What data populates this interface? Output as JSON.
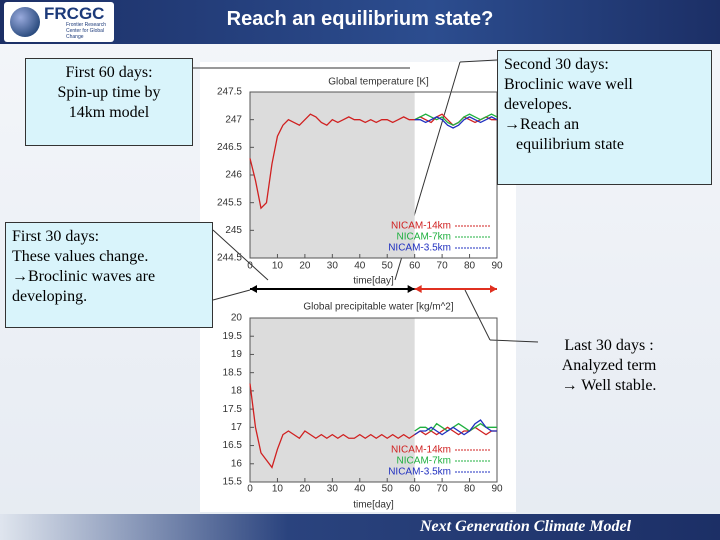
{
  "header": {
    "title": "Reach an equilibrium state?",
    "logo": "FRCGC",
    "logo_subtitle": "Frontier Research Center for Global Change"
  },
  "footer": "Next Generation Climate Model",
  "callouts": [
    {
      "lines": [
        "First 60 days:",
        "Spin-up time by",
        "14km model"
      ]
    },
    {
      "lines": [
        "First 30 days:",
        "These values change.",
        "→Broclinic waves are",
        "developing."
      ]
    },
    {
      "lines": [
        "Second 30 days:",
        "Broclinic wave well",
        "developes.",
        "→Reach an",
        "   equilibrium state"
      ]
    },
    {
      "lines": [
        "Last 30 days :",
        "Analyzed term",
        "→ Well stable."
      ]
    }
  ],
  "arrows": [
    {
      "from": 0,
      "to": 60,
      "color": "#000000"
    },
    {
      "from": 60,
      "to": 90,
      "color": "#e03020"
    }
  ],
  "chart_data": [
    {
      "type": "line",
      "title": "Global temperature [K]",
      "x_label": "time[day]",
      "x": [
        0,
        2,
        4,
        6,
        8,
        10,
        12,
        14,
        16,
        18,
        20,
        22,
        24,
        26,
        28,
        30,
        32,
        34,
        36,
        38,
        40,
        42,
        44,
        46,
        48,
        50,
        52,
        54,
        56,
        58,
        60,
        62,
        64,
        66,
        68,
        70,
        72,
        74,
        76,
        78,
        80,
        82,
        84,
        86,
        88,
        90
      ],
      "xlim": [
        0,
        90
      ],
      "xticks": [
        0,
        10,
        20,
        30,
        40,
        50,
        60,
        70,
        80,
        90
      ],
      "ylim": [
        244.5,
        247.5
      ],
      "yticks": [
        244.5,
        245,
        245.5,
        246,
        246.5,
        247,
        247.5
      ],
      "grid": false,
      "legend": "lower right",
      "spans": [
        {
          "from": 0,
          "to": 60,
          "color": "#dcdcdc"
        }
      ],
      "series": [
        {
          "name": "NICAM-14km",
          "color": "#d02020",
          "values": [
            246.3,
            245.9,
            245.4,
            245.5,
            246.2,
            246.7,
            246.9,
            247.0,
            246.95,
            246.9,
            247.0,
            247.1,
            247.05,
            246.95,
            246.9,
            247.0,
            246.95,
            247.0,
            247.05,
            247.0,
            247.0,
            246.95,
            247.0,
            246.95,
            247.0,
            247.0,
            246.95,
            247.0,
            247.05,
            247.0,
            247.0,
            247.05,
            247.0,
            246.95,
            247.05,
            247.1,
            247.0,
            246.9,
            246.95,
            247.05,
            247.0,
            246.95,
            247.0,
            247.05,
            247.0,
            247.0
          ]
        },
        {
          "name": "NICAM-7km",
          "color": "#20b040",
          "values": [
            null,
            null,
            null,
            null,
            null,
            null,
            null,
            null,
            null,
            null,
            null,
            null,
            null,
            null,
            null,
            null,
            null,
            null,
            null,
            null,
            null,
            null,
            null,
            null,
            null,
            null,
            null,
            null,
            null,
            null,
            247.0,
            247.05,
            247.1,
            247.05,
            247.0,
            247.05,
            246.95,
            246.9,
            246.95,
            247.05,
            247.1,
            247.05,
            247.0,
            247.05,
            247.1,
            247.05
          ]
        },
        {
          "name": "NICAM-3.5km",
          "color": "#2030c0",
          "values": [
            null,
            null,
            null,
            null,
            null,
            null,
            null,
            null,
            null,
            null,
            null,
            null,
            null,
            null,
            null,
            null,
            null,
            null,
            null,
            null,
            null,
            null,
            null,
            null,
            null,
            null,
            null,
            null,
            null,
            null,
            247.0,
            247.0,
            246.95,
            247.0,
            247.05,
            247.0,
            246.9,
            246.85,
            246.9,
            247.0,
            247.05,
            247.0,
            246.95,
            247.0,
            247.05,
            247.0
          ]
        }
      ]
    },
    {
      "type": "line",
      "title": "Global precipitable water [kg/m^2]",
      "x_label": "time[day]",
      "x": [
        0,
        2,
        4,
        6,
        8,
        10,
        12,
        14,
        16,
        18,
        20,
        22,
        24,
        26,
        28,
        30,
        32,
        34,
        36,
        38,
        40,
        42,
        44,
        46,
        48,
        50,
        52,
        54,
        56,
        58,
        60,
        62,
        64,
        66,
        68,
        70,
        72,
        74,
        76,
        78,
        80,
        82,
        84,
        86,
        88,
        90
      ],
      "xlim": [
        0,
        90
      ],
      "xticks": [
        0,
        10,
        20,
        30,
        40,
        50,
        60,
        70,
        80,
        90
      ],
      "ylim": [
        15.5,
        20
      ],
      "yticks": [
        15.5,
        16,
        16.5,
        17,
        17.5,
        18,
        18.5,
        19,
        19.5,
        20
      ],
      "grid": false,
      "legend": "lower right",
      "spans": [
        {
          "from": 0,
          "to": 60,
          "color": "#dcdcdc"
        }
      ],
      "series": [
        {
          "name": "NICAM-14km",
          "color": "#d02020",
          "values": [
            18.2,
            17.0,
            16.3,
            16.1,
            15.9,
            16.4,
            16.8,
            16.9,
            16.8,
            16.7,
            16.9,
            16.8,
            16.7,
            16.8,
            16.7,
            16.8,
            16.7,
            16.8,
            16.7,
            16.7,
            16.8,
            16.7,
            16.8,
            16.7,
            16.8,
            16.7,
            16.8,
            16.7,
            16.8,
            16.7,
            16.8,
            16.9,
            16.8,
            16.9,
            16.8,
            16.9,
            17.0,
            16.9,
            16.8,
            16.9,
            16.9,
            17.0,
            16.9,
            16.8,
            16.9,
            16.9
          ]
        },
        {
          "name": "NICAM-7km",
          "color": "#20b040",
          "values": [
            null,
            null,
            null,
            null,
            null,
            null,
            null,
            null,
            null,
            null,
            null,
            null,
            null,
            null,
            null,
            null,
            null,
            null,
            null,
            null,
            null,
            null,
            null,
            null,
            null,
            null,
            null,
            null,
            null,
            null,
            16.9,
            17.0,
            17.0,
            16.9,
            17.1,
            17.0,
            16.9,
            17.0,
            17.1,
            17.0,
            16.9,
            17.0,
            17.1,
            17.0,
            17.0,
            17.0
          ]
        },
        {
          "name": "NICAM-3.5km",
          "color": "#2030c0",
          "values": [
            null,
            null,
            null,
            null,
            null,
            null,
            null,
            null,
            null,
            null,
            null,
            null,
            null,
            null,
            null,
            null,
            null,
            null,
            null,
            null,
            null,
            null,
            null,
            null,
            null,
            null,
            null,
            null,
            null,
            null,
            16.8,
            16.9,
            16.9,
            17.0,
            16.9,
            16.8,
            16.9,
            17.0,
            16.9,
            16.8,
            16.9,
            17.1,
            17.2,
            17.0,
            16.9,
            16.9
          ]
        }
      ]
    }
  ]
}
